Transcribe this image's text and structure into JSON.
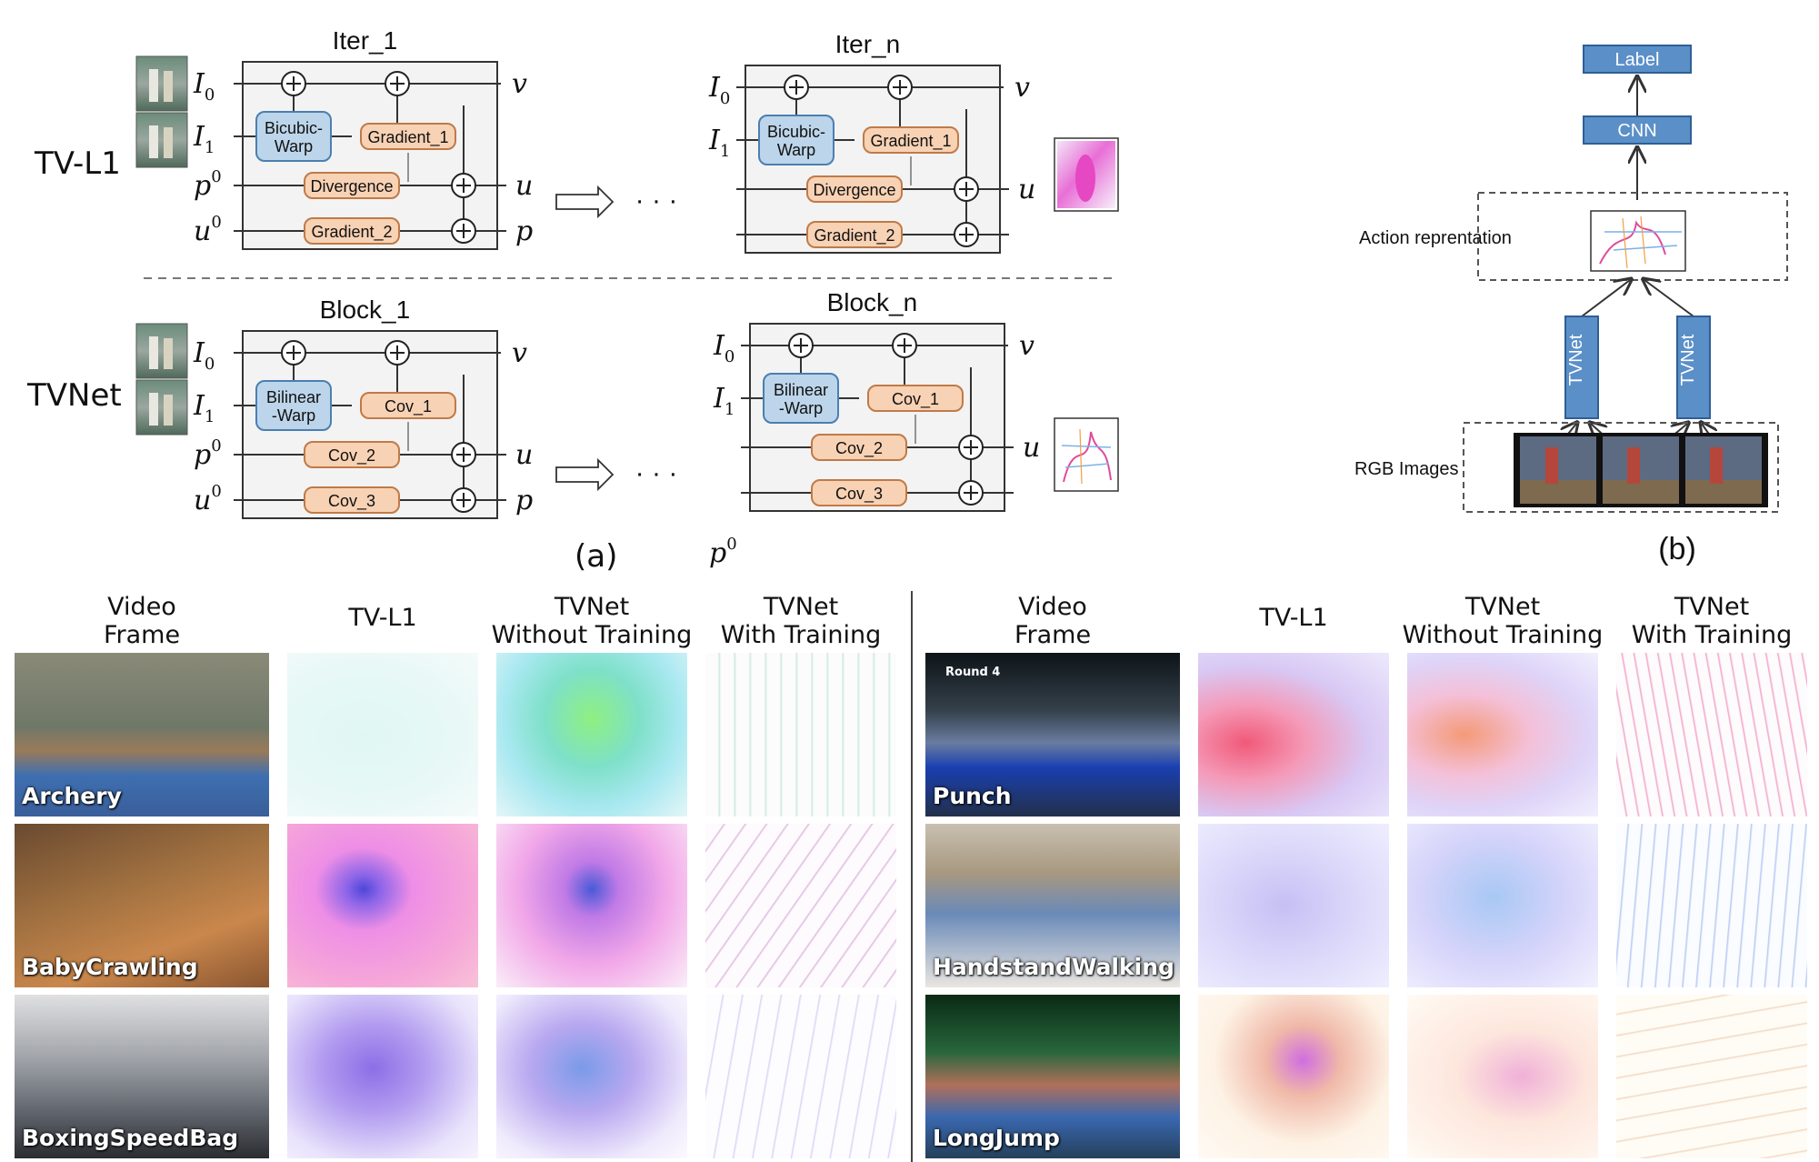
{
  "panel_a": {
    "rows": [
      {
        "name": "TV-L1",
        "first_block": {
          "title": "Iter_1",
          "warp_label": "Bicubic-\nWarp",
          "grad_label": "Gradient_1",
          "mid_label": "Divergence",
          "bottom_label": "Gradient_2"
        },
        "last_block": {
          "title": "Iter_n",
          "warp_label": "Bicubic-\nWarp",
          "grad_label": "Gradient_1",
          "mid_label": "Divergence",
          "bottom_label": "Gradient_2"
        }
      },
      {
        "name": "TVNet",
        "first_block": {
          "title": "Block_1",
          "warp_label": "Bilinear\n-Warp",
          "grad_label": "Cov_1",
          "mid_label": "Cov_2",
          "bottom_label": "Cov_3"
        },
        "last_block": {
          "title": "Block_n",
          "warp_label": "Bilinear\n-Warp",
          "grad_label": "Cov_1",
          "mid_label": "Cov_2",
          "bottom_label": "Cov_3"
        }
      }
    ],
    "inputs": {
      "i0": "I",
      "i0_sub": "0",
      "i1": "I",
      "i1_sub": "1",
      "p0": "p",
      "p0_sup": "0",
      "u0": "u",
      "u0_sup": "0"
    },
    "outputs": {
      "v": "v",
      "u": "u",
      "p": "p"
    },
    "ellipsis": "· · ·",
    "caption": "(a)"
  },
  "panel_b": {
    "label_box": "Label",
    "cnn_box": "CNN",
    "action_label": "Action reprentation",
    "tvnet_left": "TVNet",
    "tvnet_right": "TVNet",
    "rgb_label": "RGB Images",
    "caption": "(b)"
  },
  "grid": {
    "left_headers": [
      "Video\nFrame",
      "TV-L1",
      "TVNet\nWithout Training",
      "TVNet\nWith Training"
    ],
    "right_headers": [
      "Video\nFrame",
      "TV-L1",
      "TVNet\nWithout Training",
      "TVNet\nWith Training"
    ],
    "left_rows": [
      "Archery",
      "BabyCrawling",
      "BoxingSpeedBag"
    ],
    "right_rows": [
      "Punch",
      "HandstandWalking",
      "LongJump"
    ],
    "punch_overlay": "Round 4"
  },
  "colors": {
    "warp_fill": "#bcd5ea",
    "warp_stroke": "#4a7fb0",
    "op_fill": "#f8d2b4",
    "op_stroke": "#c07a48",
    "net_box_fill": "#5b8fc8",
    "net_box_stroke": "#2e5f95"
  }
}
